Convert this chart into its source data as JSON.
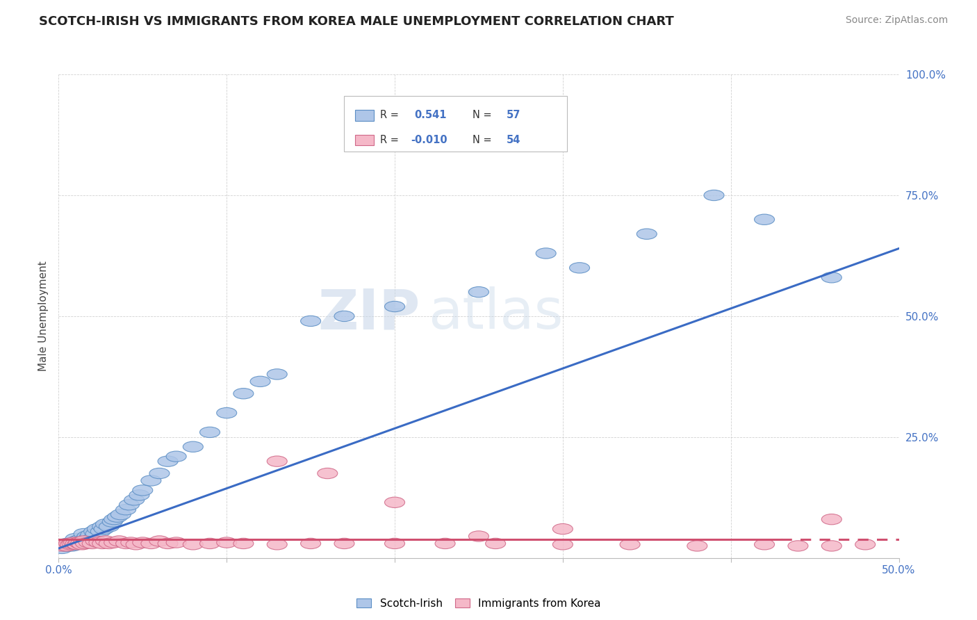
{
  "title": "SCOTCH-IRISH VS IMMIGRANTS FROM KOREA MALE UNEMPLOYMENT CORRELATION CHART",
  "source": "Source: ZipAtlas.com",
  "ylabel": "Male Unemployment",
  "watermark_zip": "ZIP",
  "watermark_atlas": "atlas",
  "series1_label": "Scotch-Irish",
  "series2_label": "Immigrants from Korea",
  "series1_fill": "#aec6e8",
  "series1_edge": "#5b8ec4",
  "series2_fill": "#f5b8c8",
  "series2_edge": "#d06888",
  "series1_line_color": "#3a6bc4",
  "series2_line_color": "#d05070",
  "R1": 0.541,
  "N1": 57,
  "R2": -0.01,
  "N2": 54,
  "xlim": [
    0.0,
    0.5
  ],
  "ylim": [
    0.0,
    1.0
  ],
  "blue_line": [
    [
      0.0,
      0.02
    ],
    [
      0.5,
      0.64
    ]
  ],
  "pink_line_solid": [
    [
      0.0,
      0.038
    ],
    [
      0.43,
      0.038
    ]
  ],
  "pink_line_dash": [
    [
      0.43,
      0.038
    ],
    [
      0.5,
      0.038
    ]
  ],
  "scotch_irish_x": [
    0.002,
    0.004,
    0.005,
    0.006,
    0.007,
    0.008,
    0.009,
    0.01,
    0.01,
    0.011,
    0.012,
    0.013,
    0.014,
    0.015,
    0.015,
    0.016,
    0.017,
    0.018,
    0.019,
    0.02,
    0.021,
    0.022,
    0.023,
    0.025,
    0.026,
    0.027,
    0.028,
    0.03,
    0.032,
    0.033,
    0.035,
    0.037,
    0.04,
    0.042,
    0.045,
    0.048,
    0.05,
    0.055,
    0.06,
    0.065,
    0.07,
    0.08,
    0.09,
    0.1,
    0.11,
    0.12,
    0.13,
    0.15,
    0.17,
    0.2,
    0.25,
    0.29,
    0.31,
    0.35,
    0.39,
    0.42,
    0.46
  ],
  "scotch_irish_y": [
    0.02,
    0.025,
    0.03,
    0.025,
    0.03,
    0.025,
    0.03,
    0.028,
    0.04,
    0.035,
    0.03,
    0.038,
    0.032,
    0.035,
    0.05,
    0.04,
    0.045,
    0.042,
    0.048,
    0.04,
    0.055,
    0.05,
    0.06,
    0.055,
    0.065,
    0.06,
    0.07,
    0.065,
    0.075,
    0.08,
    0.085,
    0.09,
    0.1,
    0.11,
    0.12,
    0.13,
    0.14,
    0.16,
    0.175,
    0.2,
    0.21,
    0.23,
    0.26,
    0.3,
    0.34,
    0.365,
    0.38,
    0.49,
    0.5,
    0.52,
    0.55,
    0.63,
    0.6,
    0.67,
    0.75,
    0.7,
    0.58
  ],
  "korea_x": [
    0.002,
    0.004,
    0.005,
    0.006,
    0.007,
    0.008,
    0.009,
    0.01,
    0.011,
    0.012,
    0.013,
    0.014,
    0.015,
    0.016,
    0.018,
    0.02,
    0.022,
    0.024,
    0.026,
    0.028,
    0.03,
    0.033,
    0.036,
    0.04,
    0.043,
    0.046,
    0.05,
    0.055,
    0.06,
    0.065,
    0.07,
    0.08,
    0.09,
    0.1,
    0.11,
    0.13,
    0.15,
    0.17,
    0.2,
    0.23,
    0.26,
    0.3,
    0.34,
    0.38,
    0.42,
    0.44,
    0.46,
    0.48,
    0.13,
    0.16,
    0.2,
    0.25,
    0.3,
    0.46
  ],
  "korea_y": [
    0.025,
    0.028,
    0.025,
    0.03,
    0.028,
    0.03,
    0.032,
    0.03,
    0.028,
    0.032,
    0.03,
    0.028,
    0.035,
    0.03,
    0.032,
    0.03,
    0.035,
    0.032,
    0.03,
    0.035,
    0.03,
    0.032,
    0.035,
    0.03,
    0.032,
    0.028,
    0.032,
    0.03,
    0.035,
    0.03,
    0.032,
    0.028,
    0.03,
    0.032,
    0.03,
    0.028,
    0.03,
    0.03,
    0.03,
    0.03,
    0.03,
    0.028,
    0.028,
    0.025,
    0.028,
    0.025,
    0.025,
    0.028,
    0.2,
    0.175,
    0.115,
    0.045,
    0.06,
    0.08
  ]
}
